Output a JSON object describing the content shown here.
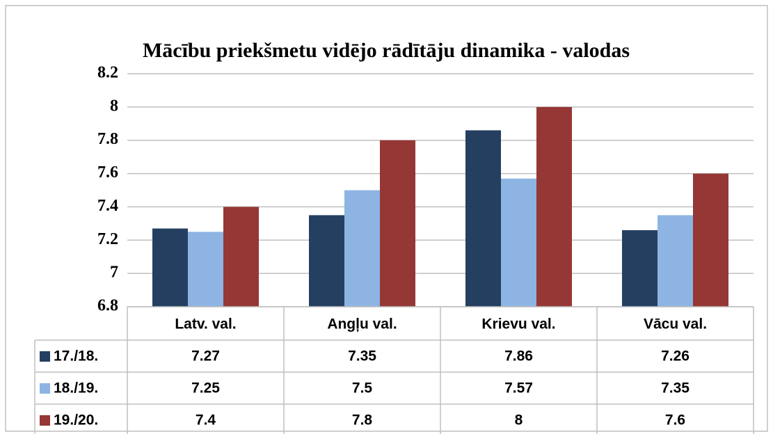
{
  "chart_data": {
    "type": "bar",
    "title": "Mācību priekšmetu vidējo rādītāju dinamika - valodas",
    "categories": [
      "Latv. val.",
      "Angļu val.",
      "Krievu val.",
      "Vācu val."
    ],
    "series": [
      {
        "name": "17./18.",
        "color": "#243f60",
        "values": [
          7.27,
          7.35,
          7.86,
          7.26
        ]
      },
      {
        "name": "18./19.",
        "color": "#8eb4e3",
        "values": [
          7.25,
          7.5,
          7.57,
          7.35
        ]
      },
      {
        "name": "19./20.",
        "color": "#953735",
        "values": [
          7.4,
          7.8,
          8,
          7.6
        ]
      }
    ],
    "ylim": [
      6.8,
      8.2
    ],
    "yticks": [
      6.8,
      7,
      7.2,
      7.4,
      7.6,
      7.8,
      8,
      8.2
    ],
    "grid": true
  }
}
